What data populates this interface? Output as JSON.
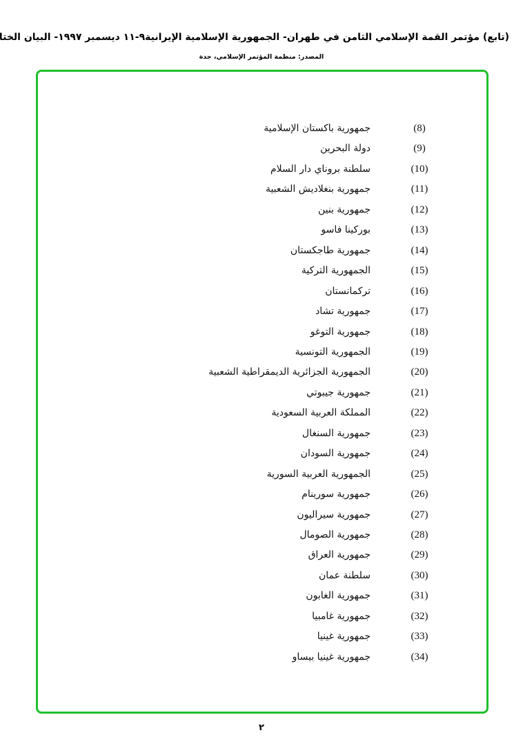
{
  "header": {
    "title": "(تابع) مؤتمر القمة الإسلامي الثامن في طهران- الجمهورية الإسلامية الإيرانية٩-١١ ديسمبر ١٩٩٧- البيان الختامي",
    "source": "المصدر: منظمة المؤتمر الإسلامي، جدة"
  },
  "frame_color": "#1fbf2a",
  "items": [
    {
      "num": "(8)",
      "name": "جمهورية باكستان الإسلامية"
    },
    {
      "num": "(9)",
      "name": "دولة البحرين"
    },
    {
      "num": "(10)",
      "name": "سلطنة بروناي دار السلام"
    },
    {
      "num": "(11)",
      "name": "جمهورية بنغلاديش الشعبية"
    },
    {
      "num": "(12)",
      "name": "جمهورية بنين"
    },
    {
      "num": "(13)",
      "name": "بوركينا فاسو"
    },
    {
      "num": "(14)",
      "name": "جمهورية طاجكستان"
    },
    {
      "num": "(15)",
      "name": "الجمهورية التركية"
    },
    {
      "num": "(16)",
      "name": "تركمانستان"
    },
    {
      "num": "(17)",
      "name": "جمهورية تشاد"
    },
    {
      "num": "(18)",
      "name": "جمهورية التوغو"
    },
    {
      "num": "(19)",
      "name": "الجمهورية التونسية"
    },
    {
      "num": "(20)",
      "name": "الجمهورية الجزائرية الديمقراطية الشعبية"
    },
    {
      "num": "(21)",
      "name": "جمهورية جيبوتي"
    },
    {
      "num": "(22)",
      "name": "المملكة العربية السعودية"
    },
    {
      "num": "(23)",
      "name": "جمهورية السنغال"
    },
    {
      "num": "(24)",
      "name": "جمهورية السودان"
    },
    {
      "num": "(25)",
      "name": "الجمهورية العربية السورية"
    },
    {
      "num": "(26)",
      "name": "جمهورية سورينام"
    },
    {
      "num": "(27)",
      "name": "جمهورية سيراليون"
    },
    {
      "num": "(28)",
      "name": "جمهورية الصومال"
    },
    {
      "num": "(29)",
      "name": "جمهورية العراق"
    },
    {
      "num": "(30)",
      "name": "سلطنة عمان"
    },
    {
      "num": "(31)",
      "name": "جمهورية الغابون"
    },
    {
      "num": "(32)",
      "name": "جمهورية غامبيا"
    },
    {
      "num": "(33)",
      "name": "جمهورية غينيا"
    },
    {
      "num": "(34)",
      "name": "جمهورية غينيا بيساو"
    }
  ],
  "page_number": "٢"
}
